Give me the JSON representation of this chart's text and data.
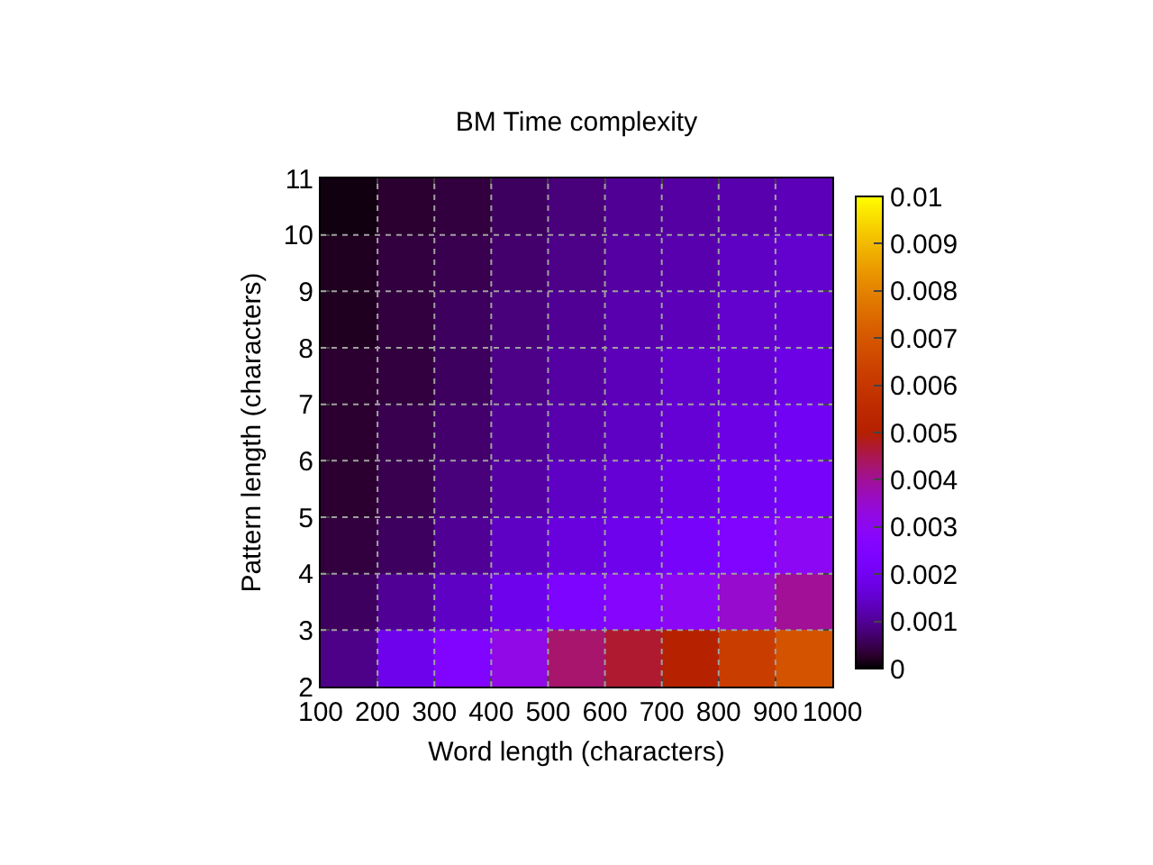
{
  "chart_data": {
    "type": "heatmap",
    "title": "BM Time complexity",
    "xlabel": "Word length (characters)",
    "ylabel": "Pattern length (characters)",
    "xlim": [
      100,
      1000
    ],
    "xticks": [
      100,
      200,
      300,
      400,
      500,
      600,
      700,
      800,
      900,
      1000
    ],
    "ylim": [
      2,
      11
    ],
    "yticks": [
      2,
      3,
      4,
      5,
      6,
      7,
      8,
      9,
      10,
      11
    ],
    "clim": [
      0,
      0.01
    ],
    "cticks": [
      0,
      0.001,
      0.002,
      0.003,
      0.004,
      0.005,
      0.006,
      0.007,
      0.008,
      0.009,
      0.01
    ],
    "grid": true,
    "cells": [
      [
        0.0001,
        0.0003,
        0.0004,
        0.0006,
        0.0008,
        0.001,
        0.0011,
        0.0012,
        0.0013
      ],
      [
        0.0002,
        0.0004,
        0.0005,
        0.0007,
        0.0009,
        0.0011,
        0.0012,
        0.0014,
        0.0015
      ],
      [
        0.0002,
        0.0004,
        0.0006,
        0.0008,
        0.001,
        0.0012,
        0.0013,
        0.0015,
        0.0016
      ],
      [
        0.0003,
        0.0004,
        0.0006,
        0.0009,
        0.0011,
        0.0013,
        0.0015,
        0.0016,
        0.0018
      ],
      [
        0.0003,
        0.0005,
        0.0007,
        0.001,
        0.0012,
        0.0014,
        0.0016,
        0.0018,
        0.002
      ],
      [
        0.0003,
        0.0005,
        0.0008,
        0.0011,
        0.0014,
        0.0016,
        0.0018,
        0.002,
        0.0022
      ],
      [
        0.0004,
        0.0006,
        0.001,
        0.0014,
        0.0017,
        0.0019,
        0.0022,
        0.0025,
        0.003
      ],
      [
        0.0006,
        0.001,
        0.0014,
        0.0019,
        0.0024,
        0.0027,
        0.003,
        0.0035,
        0.004
      ],
      [
        0.0009,
        0.0019,
        0.0025,
        0.0032,
        0.0043,
        0.0047,
        0.0051,
        0.0062,
        0.0069
      ]
    ]
  }
}
